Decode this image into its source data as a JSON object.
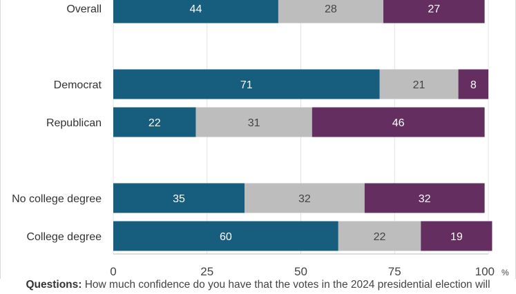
{
  "chart_data": {
    "type": "bar",
    "orientation": "horizontal",
    "stacked": true,
    "groups": [
      [
        "Overall"
      ],
      [
        "Democrat",
        "Republican"
      ],
      [
        "No college degree",
        "College degree"
      ]
    ],
    "categories": [
      "Overall",
      "Democrat",
      "Republican",
      "No college degree",
      "College degree"
    ],
    "series": [
      {
        "values": [
          44,
          71,
          22,
          35,
          60
        ],
        "color": "#175e7e",
        "label_color": "#ffffff"
      },
      {
        "values": [
          28,
          21,
          31,
          32,
          22
        ],
        "color": "#bdbdbd",
        "label_color": "#444444"
      },
      {
        "values": [
          27,
          8,
          46,
          32,
          19
        ],
        "color": "#652e61",
        "label_color": "#ffffff"
      }
    ],
    "xlim": [
      0,
      100
    ],
    "xticks": [
      "0",
      "25",
      "50",
      "75",
      "100"
    ],
    "x_unit": "%",
    "grid": true
  },
  "footnote": {
    "label": "Questions:",
    "text": "How much confidence do you have that the votes in the 2024 presidential election will"
  }
}
